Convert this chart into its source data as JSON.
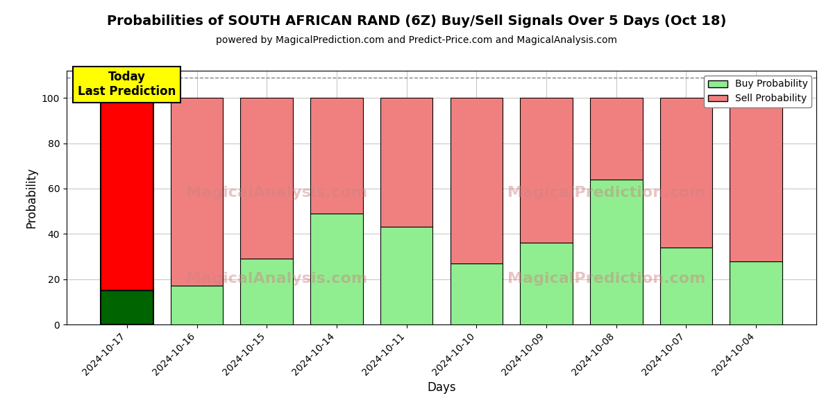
{
  "title": "Probabilities of SOUTH AFRICAN RAND (6Z) Buy/Sell Signals Over 5 Days (Oct 18)",
  "subtitle": "powered by MagicalPrediction.com and Predict-Price.com and MagicalAnalysis.com",
  "xlabel": "Days",
  "ylabel": "Probability",
  "categories": [
    "2024-10-17",
    "2024-10-16",
    "2024-10-15",
    "2024-10-14",
    "2024-10-11",
    "2024-10-10",
    "2024-10-09",
    "2024-10-08",
    "2024-10-07",
    "2024-10-04"
  ],
  "buy_values": [
    15,
    17,
    29,
    49,
    43,
    27,
    36,
    64,
    34,
    28
  ],
  "sell_values": [
    85,
    83,
    71,
    51,
    57,
    73,
    64,
    36,
    66,
    72
  ],
  "today_index": 0,
  "today_label": "Today\nLast Prediction",
  "buy_color_today": "#006400",
  "sell_color_today": "#ff0000",
  "buy_color_normal": "#90EE90",
  "sell_color_normal": "#f08080",
  "ylim": [
    0,
    112
  ],
  "yticks": [
    0,
    20,
    40,
    60,
    80,
    100
  ],
  "dashed_line_y": 109,
  "watermark1": "MagicalAnalysis.com",
  "watermark2": "MagicalPrediction.com",
  "background_color": "#ffffff",
  "grid_color": "#aaaaaa",
  "bar_width": 0.75
}
